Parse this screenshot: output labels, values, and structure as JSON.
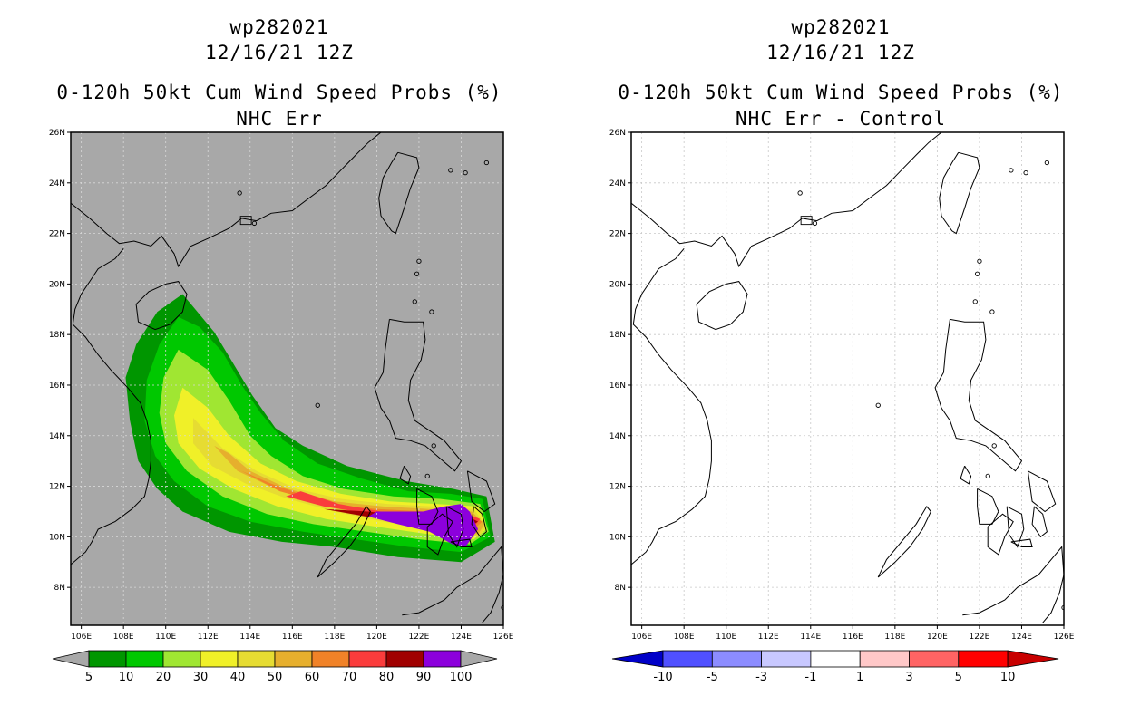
{
  "left": {
    "storm_id": "wp282021",
    "datetime": "12/16/21 12Z",
    "product": "0-120h 50kt Cum Wind Speed Probs (%)",
    "subtitle": "NHC Err",
    "background": "#a8a8a8"
  },
  "right": {
    "storm_id": "wp282021",
    "datetime": "12/16/21 12Z",
    "product": "0-120h 50kt Cum Wind Speed Probs (%)",
    "subtitle": "NHC Err - Control",
    "background": "#ffffff"
  },
  "axes": {
    "lon_range": [
      105.5,
      126
    ],
    "lat_range": [
      6.5,
      26
    ],
    "lon_ticks": [
      "106E",
      "108E",
      "110E",
      "112E",
      "114E",
      "116E",
      "118E",
      "120E",
      "122E",
      "124E",
      "126E"
    ],
    "lat_ticks": [
      "8N",
      "10N",
      "12N",
      "14N",
      "16N",
      "18N",
      "20N",
      "22N",
      "24N",
      "26N"
    ]
  },
  "colorbar_left": {
    "labels": [
      "5",
      "10",
      "20",
      "30",
      "40",
      "50",
      "60",
      "70",
      "80",
      "90",
      "100"
    ],
    "colors": [
      "#009600",
      "#00c800",
      "#a0e632",
      "#f0f028",
      "#e6dc32",
      "#e6af2d",
      "#f08228",
      "#fa3c3c",
      "#a00000",
      "#8c00dc"
    ]
  },
  "colorbar_right": {
    "labels": [
      "-10",
      "-5",
      "-3",
      "-1",
      "1",
      "3",
      "5",
      "10"
    ],
    "colors": [
      "#0000c8",
      "#5050ff",
      "#8c8cff",
      "#c8c8ff",
      "#ffffff",
      "#ffc8c8",
      "#ff6464",
      "#ff0000",
      "#c80000"
    ]
  },
  "prob_contours": [
    {
      "level": "5",
      "color": "#009600",
      "pts": [
        [
          110.8,
          19.6
        ],
        [
          109.6,
          18.9
        ],
        [
          108.6,
          17.6
        ],
        [
          108.1,
          16.3
        ],
        [
          108.3,
          14.6
        ],
        [
          108.7,
          13.0
        ],
        [
          109.6,
          11.9
        ],
        [
          110.8,
          11.0
        ],
        [
          113.0,
          10.2
        ],
        [
          115.5,
          9.8
        ],
        [
          118.0,
          9.6
        ],
        [
          121.0,
          9.2
        ],
        [
          124.0,
          9.0
        ],
        [
          125.6,
          9.8
        ],
        [
          125.2,
          11.6
        ],
        [
          123.6,
          11.9
        ],
        [
          121.4,
          12.2
        ],
        [
          118.6,
          12.8
        ],
        [
          116.5,
          13.6
        ],
        [
          115.2,
          14.3
        ],
        [
          114.1,
          15.6
        ],
        [
          113.1,
          17.0
        ],
        [
          112.3,
          18.1
        ]
      ]
    },
    {
      "level": "10",
      "color": "#00c800",
      "pts": [
        [
          110.6,
          18.7
        ],
        [
          109.7,
          17.6
        ],
        [
          109.1,
          16.2
        ],
        [
          109.0,
          14.6
        ],
        [
          109.5,
          13.2
        ],
        [
          110.4,
          12.2
        ],
        [
          112.0,
          11.2
        ],
        [
          114.0,
          10.6
        ],
        [
          116.5,
          10.2
        ],
        [
          119.0,
          9.9
        ],
        [
          121.5,
          9.6
        ],
        [
          124.0,
          9.4
        ],
        [
          125.4,
          10.0
        ],
        [
          125.0,
          11.5
        ],
        [
          123.5,
          11.7
        ],
        [
          121.5,
          11.8
        ],
        [
          119.3,
          12.3
        ],
        [
          117.2,
          12.9
        ],
        [
          115.6,
          13.8
        ],
        [
          114.5,
          14.9
        ],
        [
          113.6,
          16.0
        ],
        [
          112.7,
          17.3
        ],
        [
          111.6,
          18.3
        ]
      ]
    },
    {
      "level": "20",
      "color": "#a0e632",
      "pts": [
        [
          110.6,
          17.4
        ],
        [
          109.9,
          16.3
        ],
        [
          109.7,
          14.9
        ],
        [
          110.0,
          13.7
        ],
        [
          111.0,
          12.6
        ],
        [
          112.7,
          11.6
        ],
        [
          114.8,
          10.9
        ],
        [
          117.0,
          10.5
        ],
        [
          119.5,
          10.2
        ],
        [
          122.0,
          9.9
        ],
        [
          124.4,
          9.7
        ],
        [
          125.3,
          10.2
        ],
        [
          124.9,
          11.3
        ],
        [
          123.0,
          11.5
        ],
        [
          120.8,
          11.6
        ],
        [
          118.4,
          11.9
        ],
        [
          116.5,
          12.4
        ],
        [
          115.0,
          13.2
        ],
        [
          114.0,
          14.0
        ],
        [
          113.0,
          15.4
        ],
        [
          112.0,
          16.6
        ]
      ]
    },
    {
      "level": "30",
      "color": "#f0f028",
      "pts": [
        [
          110.8,
          15.9
        ],
        [
          110.4,
          14.8
        ],
        [
          110.6,
          13.7
        ],
        [
          111.6,
          12.7
        ],
        [
          113.2,
          11.9
        ],
        [
          115.3,
          11.2
        ],
        [
          117.6,
          10.7
        ],
        [
          120.0,
          10.4
        ],
        [
          122.5,
          10.1
        ],
        [
          124.6,
          9.9
        ],
        [
          125.2,
          10.3
        ],
        [
          124.8,
          11.2
        ],
        [
          122.8,
          11.3
        ],
        [
          120.6,
          11.4
        ],
        [
          118.3,
          11.7
        ],
        [
          116.2,
          12.2
        ],
        [
          114.5,
          12.9
        ],
        [
          113.0,
          14.0
        ],
        [
          112.0,
          15.1
        ]
      ]
    },
    {
      "level": "40",
      "color": "#e6dc32",
      "pts": [
        [
          111.3,
          14.7
        ],
        [
          111.3,
          13.7
        ],
        [
          112.2,
          12.8
        ],
        [
          113.8,
          12.1
        ],
        [
          115.8,
          11.5
        ],
        [
          118.0,
          11.0
        ],
        [
          120.3,
          10.6
        ],
        [
          122.8,
          10.3
        ],
        [
          124.8,
          10.0
        ],
        [
          125.2,
          10.4
        ],
        [
          124.6,
          11.1
        ],
        [
          122.7,
          11.2
        ],
        [
          120.5,
          11.3
        ],
        [
          118.3,
          11.5
        ],
        [
          116.2,
          11.9
        ],
        [
          114.3,
          12.6
        ],
        [
          112.7,
          13.5
        ]
      ]
    },
    {
      "level": "50",
      "color": "#e6af2d",
      "pts": [
        [
          112.3,
          13.6
        ],
        [
          113.4,
          12.6
        ],
        [
          115.2,
          11.9
        ],
        [
          117.3,
          11.3
        ],
        [
          119.6,
          10.8
        ],
        [
          122.2,
          10.4
        ],
        [
          124.8,
          10.1
        ],
        [
          125.1,
          10.5
        ],
        [
          124.5,
          11.0
        ],
        [
          122.5,
          11.1
        ],
        [
          120.3,
          11.2
        ],
        [
          118.0,
          11.4
        ],
        [
          115.8,
          11.9
        ],
        [
          114.0,
          12.6
        ],
        [
          113.0,
          13.3
        ]
      ]
    },
    {
      "level": "60",
      "color": "#f08228",
      "pts": [
        [
          113.6,
          12.6
        ],
        [
          115.0,
          12.1
        ],
        [
          117.0,
          11.5
        ],
        [
          119.3,
          11.0
        ],
        [
          122.0,
          10.6
        ],
        [
          124.6,
          10.3
        ],
        [
          125.0,
          10.6
        ],
        [
          124.4,
          10.9
        ],
        [
          122.4,
          11.0
        ],
        [
          120.0,
          11.1
        ],
        [
          117.6,
          11.3
        ],
        [
          115.4,
          11.8
        ]
      ]
    },
    {
      "level": "70",
      "color": "#fa3c3c",
      "pts": [
        [
          115.7,
          11.6
        ],
        [
          117.5,
          11.2
        ],
        [
          119.8,
          10.9
        ],
        [
          122.3,
          10.6
        ],
        [
          124.6,
          10.4
        ],
        [
          124.9,
          10.7
        ],
        [
          124.3,
          10.9
        ],
        [
          122.2,
          10.9
        ],
        [
          120.2,
          11.0
        ],
        [
          118.2,
          11.3
        ],
        [
          116.4,
          11.8
        ]
      ]
    },
    {
      "level": "80",
      "color": "#a00000",
      "pts": [
        [
          117.5,
          11.1
        ],
        [
          119.5,
          10.8
        ],
        [
          121.8,
          10.5
        ],
        [
          124.2,
          10.3
        ],
        [
          124.8,
          10.6
        ],
        [
          124.2,
          10.85
        ],
        [
          121.7,
          10.8
        ],
        [
          119.6,
          11.0
        ]
      ]
    },
    {
      "level": "90",
      "color": "#8c00dc",
      "pts": [
        [
          119.6,
          10.8
        ],
        [
          121.0,
          10.5
        ],
        [
          122.5,
          10.2
        ],
        [
          123.6,
          9.7
        ],
        [
          124.2,
          9.6
        ],
        [
          124.8,
          10.3
        ],
        [
          124.4,
          11.0
        ],
        [
          124.0,
          11.3
        ],
        [
          123.2,
          11.2
        ],
        [
          122.2,
          11.0
        ],
        [
          121.0,
          11.0
        ],
        [
          120.0,
          11.0
        ]
      ]
    }
  ],
  "coastlines": [
    [
      [
        105.5,
        23.2
      ],
      [
        106.4,
        22.6
      ],
      [
        107.2,
        22.0
      ],
      [
        107.8,
        21.6
      ],
      [
        108.5,
        21.7
      ],
      [
        109.3,
        21.5
      ],
      [
        109.8,
        21.9
      ],
      [
        110.4,
        21.2
      ],
      [
        110.6,
        20.7
      ],
      [
        111.2,
        21.5
      ],
      [
        112.0,
        21.8
      ],
      [
        113.0,
        22.2
      ],
      [
        113.6,
        22.6
      ],
      [
        114.3,
        22.5
      ],
      [
        115.0,
        22.8
      ],
      [
        116.0,
        22.9
      ],
      [
        116.8,
        23.4
      ],
      [
        117.6,
        23.9
      ],
      [
        118.3,
        24.5
      ],
      [
        119.0,
        25.1
      ],
      [
        119.6,
        25.6
      ],
      [
        120.2,
        26.0
      ]
    ],
    [
      [
        108.0,
        21.4
      ],
      [
        107.6,
        21.0
      ],
      [
        106.8,
        20.6
      ],
      [
        106.4,
        20.1
      ],
      [
        106.0,
        19.6
      ],
      [
        105.7,
        19.0
      ],
      [
        105.6,
        18.4
      ],
      [
        106.2,
        17.9
      ],
      [
        106.8,
        17.2
      ],
      [
        107.4,
        16.6
      ],
      [
        108.2,
        15.9
      ],
      [
        108.8,
        15.3
      ],
      [
        109.1,
        14.6
      ],
      [
        109.3,
        13.8
      ],
      [
        109.3,
        13.0
      ],
      [
        109.2,
        12.3
      ],
      [
        109.0,
        11.6
      ],
      [
        108.4,
        11.1
      ],
      [
        107.6,
        10.6
      ],
      [
        106.8,
        10.3
      ],
      [
        106.5,
        9.8
      ],
      [
        106.2,
        9.4
      ],
      [
        105.5,
        8.9
      ]
    ],
    [
      [
        110.0,
        20.0
      ],
      [
        110.6,
        20.1
      ],
      [
        111.0,
        19.6
      ],
      [
        110.8,
        18.9
      ],
      [
        110.2,
        18.4
      ],
      [
        109.5,
        18.2
      ],
      [
        108.7,
        18.5
      ],
      [
        108.6,
        19.2
      ],
      [
        109.2,
        19.7
      ],
      [
        110.0,
        20.0
      ]
    ],
    [
      [
        121.0,
        25.2
      ],
      [
        121.9,
        25.0
      ],
      [
        122.0,
        24.6
      ],
      [
        121.6,
        23.8
      ],
      [
        121.3,
        23.0
      ],
      [
        120.9,
        22.0
      ],
      [
        120.7,
        22.1
      ],
      [
        120.2,
        22.7
      ],
      [
        120.1,
        23.4
      ],
      [
        120.3,
        24.2
      ],
      [
        120.7,
        24.8
      ],
      [
        121.0,
        25.2
      ]
    ],
    [
      [
        120.6,
        18.6
      ],
      [
        121.3,
        18.5
      ],
      [
        122.2,
        18.5
      ],
      [
        122.3,
        17.8
      ],
      [
        122.1,
        17.0
      ],
      [
        121.6,
        16.2
      ],
      [
        121.5,
        15.4
      ],
      [
        121.8,
        14.6
      ],
      [
        122.5,
        14.2
      ],
      [
        123.2,
        13.8
      ],
      [
        124.0,
        13.0
      ],
      [
        123.7,
        12.6
      ],
      [
        123.0,
        13.1
      ],
      [
        122.3,
        13.6
      ],
      [
        121.6,
        13.8
      ],
      [
        120.9,
        13.9
      ],
      [
        120.6,
        14.6
      ],
      [
        120.2,
        15.1
      ],
      [
        119.9,
        15.9
      ],
      [
        120.3,
        16.5
      ],
      [
        120.4,
        17.4
      ],
      [
        120.6,
        18.6
      ]
    ],
    [
      [
        117.2,
        8.4
      ],
      [
        118.0,
        9.0
      ],
      [
        118.7,
        9.6
      ],
      [
        119.3,
        10.3
      ],
      [
        119.7,
        11.0
      ],
      [
        119.5,
        11.2
      ],
      [
        119.0,
        10.5
      ],
      [
        118.3,
        9.8
      ],
      [
        117.6,
        9.1
      ],
      [
        117.2,
        8.4
      ]
    ],
    [
      [
        121.9,
        11.9
      ],
      [
        122.6,
        11.6
      ],
      [
        122.9,
        11.0
      ],
      [
        122.6,
        10.5
      ],
      [
        122.0,
        10.5
      ],
      [
        121.9,
        11.2
      ],
      [
        121.9,
        11.9
      ]
    ],
    [
      [
        122.4,
        10.4
      ],
      [
        123.1,
        10.9
      ],
      [
        123.6,
        10.6
      ],
      [
        123.2,
        10.0
      ],
      [
        122.9,
        9.3
      ],
      [
        122.4,
        9.6
      ],
      [
        122.4,
        10.4
      ]
    ],
    [
      [
        123.3,
        11.2
      ],
      [
        124.0,
        10.9
      ],
      [
        124.1,
        10.3
      ],
      [
        123.8,
        9.6
      ],
      [
        123.4,
        10.1
      ],
      [
        123.3,
        11.2
      ]
    ],
    [
      [
        124.3,
        12.6
      ],
      [
        125.2,
        12.2
      ],
      [
        125.6,
        11.3
      ],
      [
        125.1,
        11.0
      ],
      [
        124.5,
        11.4
      ],
      [
        124.3,
        12.6
      ]
    ],
    [
      [
        124.6,
        11.2
      ],
      [
        125.0,
        10.9
      ],
      [
        125.2,
        10.2
      ],
      [
        124.9,
        10.0
      ],
      [
        124.5,
        10.5
      ],
      [
        124.6,
        11.2
      ]
    ],
    [
      [
        121.2,
        6.9
      ],
      [
        122.0,
        7.0
      ],
      [
        123.2,
        7.5
      ],
      [
        123.8,
        8.0
      ],
      [
        124.8,
        8.5
      ],
      [
        125.5,
        9.2
      ],
      [
        125.9,
        9.6
      ],
      [
        126.0,
        8.5
      ],
      [
        125.8,
        7.8
      ],
      [
        125.4,
        7.0
      ],
      [
        125.0,
        6.6
      ]
    ],
    [
      [
        121.3,
        12.8
      ],
      [
        121.6,
        12.4
      ],
      [
        121.5,
        12.1
      ],
      [
        121.1,
        12.3
      ],
      [
        121.3,
        12.8
      ]
    ],
    [
      [
        123.5,
        9.8
      ],
      [
        124.4,
        9.9
      ],
      [
        124.5,
        9.6
      ],
      [
        124.0,
        9.6
      ],
      [
        123.5,
        9.8
      ]
    ]
  ],
  "islands": [
    [
      114.2,
      22.4
    ],
    [
      113.5,
      23.6
    ],
    [
      123.5,
      24.5
    ],
    [
      124.2,
      24.4
    ],
    [
      125.2,
      24.8
    ],
    [
      121.9,
      20.4
    ],
    [
      122.0,
      20.9
    ],
    [
      121.8,
      19.3
    ],
    [
      122.6,
      18.9
    ],
    [
      117.2,
      15.2
    ],
    [
      122.7,
      13.6
    ],
    [
      122.4,
      12.4
    ],
    [
      126.0,
      7.2
    ]
  ]
}
